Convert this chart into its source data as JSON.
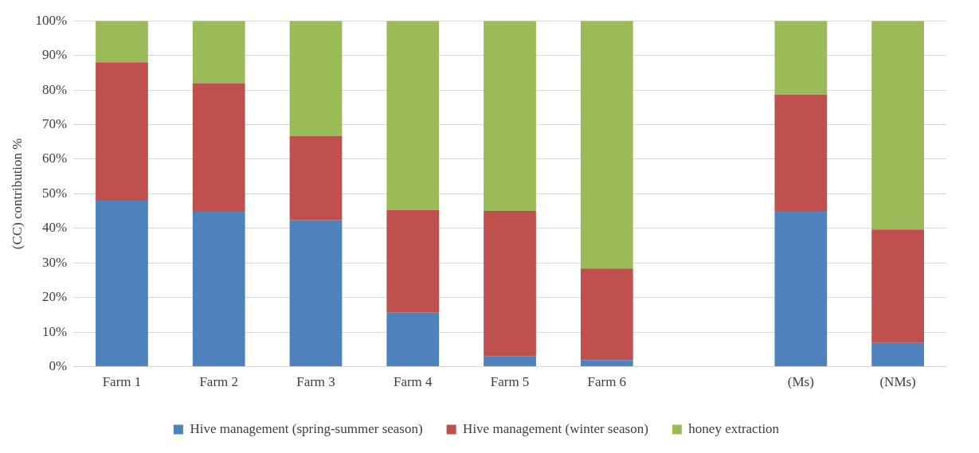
{
  "chart_data": {
    "type": "bar",
    "stacked": true,
    "ylabel": "(CC) contribution %",
    "categories": [
      "Farm 1",
      "Farm 2",
      "Farm 3",
      "Farm 4",
      "Farm 5",
      "Farm 6",
      null,
      "(Ms)",
      "(NMs)"
    ],
    "series": [
      {
        "name": "Hive management (spring-summer season)",
        "color": "#4f81bd",
        "values": [
          48,
          45,
          42.3,
          15.6,
          3.1,
          1.9,
          null,
          45,
          6.9
        ]
      },
      {
        "name": "Hive management (winter season)",
        "color": "#c0504d",
        "values": [
          40,
          37,
          24.4,
          29.8,
          41.9,
          26.5,
          null,
          33.7,
          32.8
        ]
      },
      {
        "name": "honey extraction",
        "color": "#9bbb59",
        "values": [
          12,
          18,
          33.3,
          54.6,
          55,
          71.6,
          null,
          21.3,
          60.3
        ]
      }
    ],
    "ylim": [
      0,
      100
    ],
    "yticks": [
      {
        "value": 0,
        "label": "0%"
      },
      {
        "value": 10,
        "label": "10%"
      },
      {
        "value": 20,
        "label": "20%"
      },
      {
        "value": 30,
        "label": "30%"
      },
      {
        "value": 40,
        "label": "40%"
      },
      {
        "value": 50,
        "label": "50%"
      },
      {
        "value": 60,
        "label": "60%"
      },
      {
        "value": 70,
        "label": "70%"
      },
      {
        "value": 80,
        "label": "80%"
      },
      {
        "value": 90,
        "label": "90%"
      },
      {
        "value": 100,
        "label": "100%"
      }
    ],
    "grid": "y",
    "legend": "bottom"
  }
}
